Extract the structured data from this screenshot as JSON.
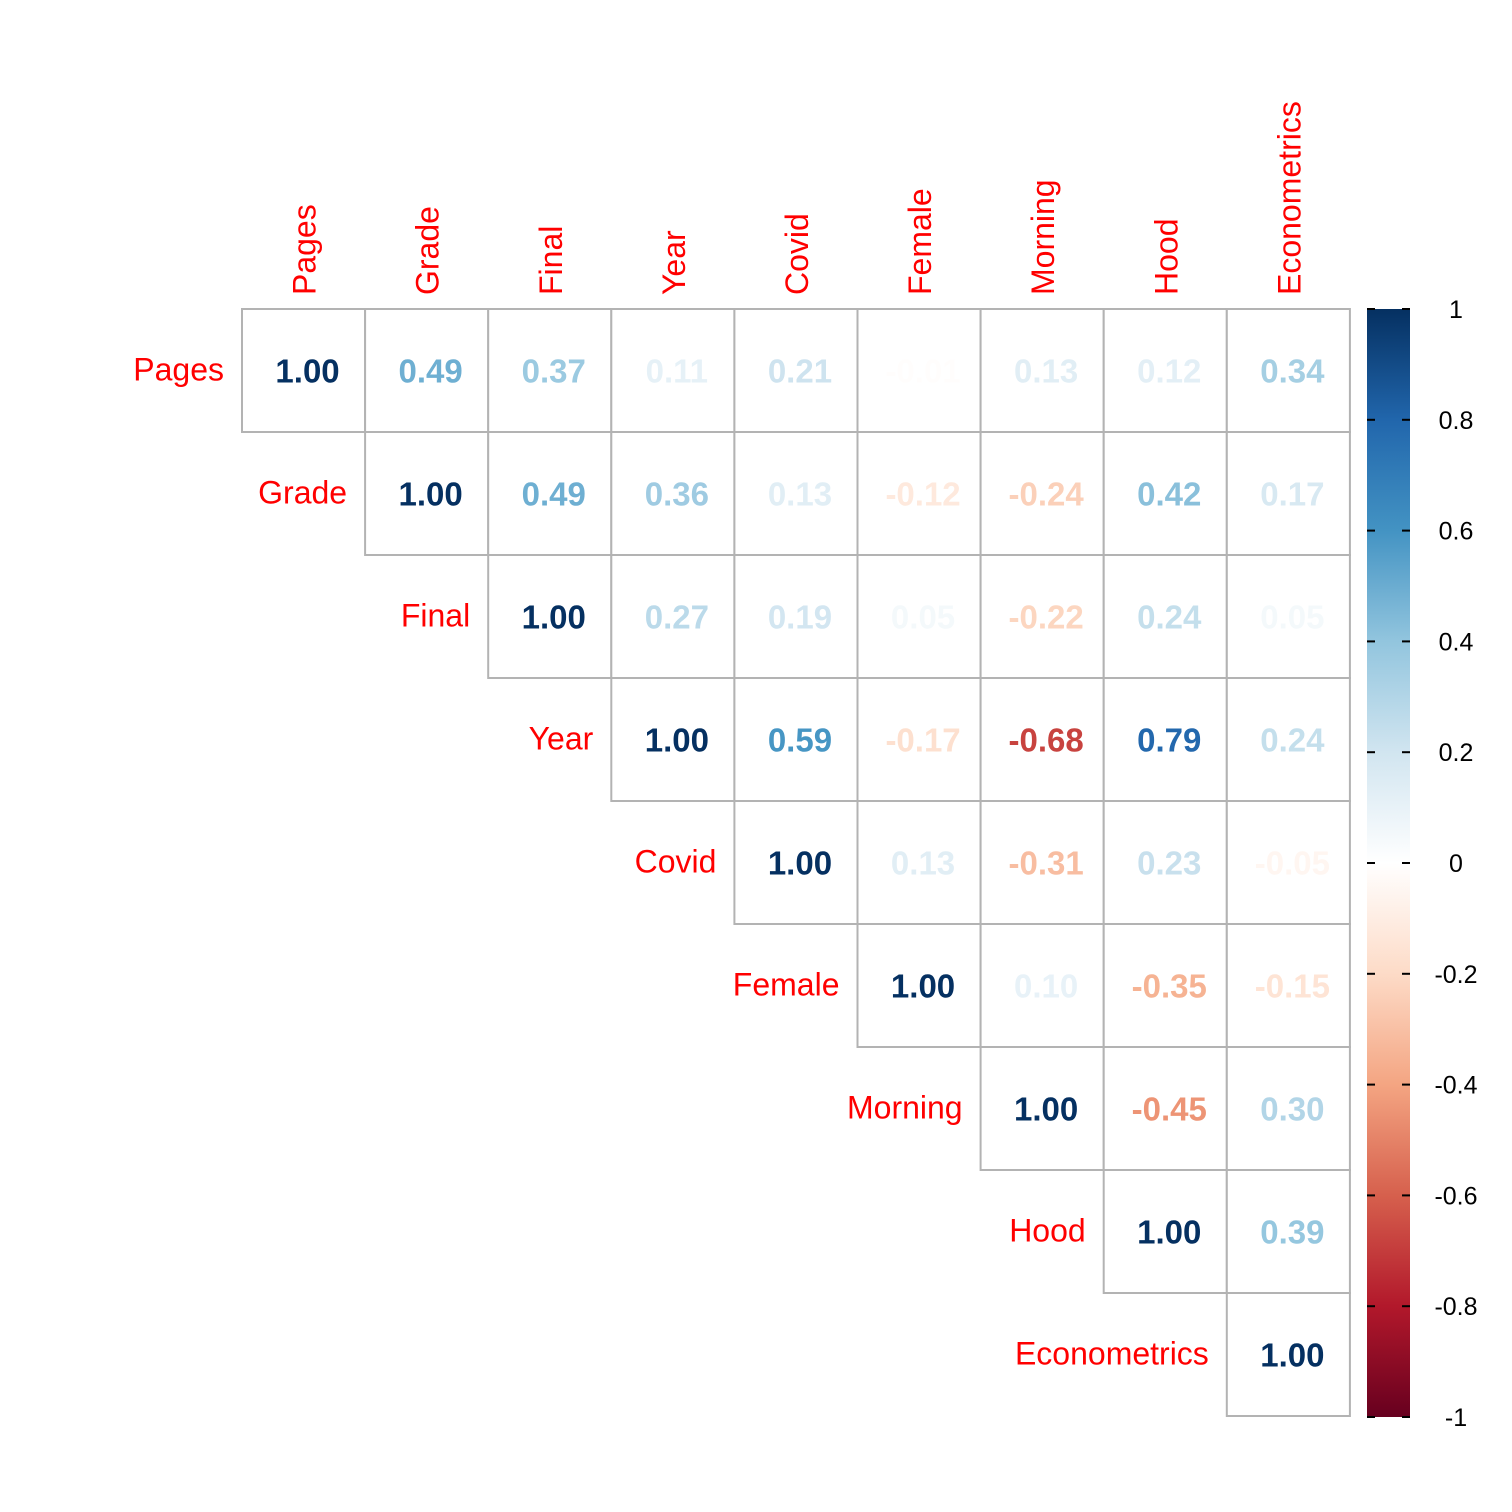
{
  "chart_data": {
    "type": "heatmap",
    "variables": [
      "Pages",
      "Grade",
      "Final",
      "Year",
      "Covid",
      "Female",
      "Morning",
      "Hood",
      "Econometrics"
    ],
    "matrix_upper": [
      [
        1.0,
        0.49,
        0.37,
        0.11,
        0.21,
        -0.01,
        0.13,
        0.12,
        0.34
      ],
      [
        null,
        1.0,
        0.49,
        0.36,
        0.13,
        -0.12,
        -0.24,
        0.42,
        0.17
      ],
      [
        null,
        null,
        1.0,
        0.27,
        0.19,
        0.05,
        -0.22,
        0.24,
        0.05
      ],
      [
        null,
        null,
        null,
        1.0,
        0.59,
        -0.17,
        -0.68,
        0.79,
        0.24
      ],
      [
        null,
        null,
        null,
        null,
        1.0,
        0.13,
        -0.31,
        0.23,
        -0.05
      ],
      [
        null,
        null,
        null,
        null,
        null,
        1.0,
        0.1,
        -0.35,
        -0.15
      ],
      [
        null,
        null,
        null,
        null,
        null,
        null,
        1.0,
        -0.45,
        0.3
      ],
      [
        null,
        null,
        null,
        null,
        null,
        null,
        null,
        1.0,
        0.39
      ],
      [
        null,
        null,
        null,
        null,
        null,
        null,
        null,
        null,
        1.0
      ]
    ],
    "colorbar": {
      "range": [
        -1,
        1
      ],
      "ticks": [
        "1",
        "0.8",
        "0.6",
        "0.4",
        "0.2",
        "0",
        "-0.2",
        "-0.4",
        "-0.6",
        "-0.8",
        "-1"
      ],
      "colors": [
        "#67001F",
        "#B2182B",
        "#D6604D",
        "#F4A582",
        "#FDDBC7",
        "#FFFFFF",
        "#D1E5F0",
        "#92C5DE",
        "#4393C3",
        "#2166AC",
        "#053061"
      ]
    },
    "label_color": "#ff0000",
    "grid_color": "#b3b3b3"
  }
}
